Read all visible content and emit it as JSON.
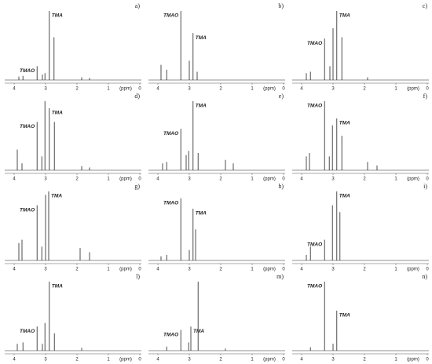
{
  "chart_data": [
    {
      "type": "spectrum",
      "label": "a)",
      "x_label": "(ppm)",
      "xlim": [
        4.2,
        0
      ],
      "ylim": [
        0,
        100
      ],
      "xticks": [
        4,
        3,
        2,
        1,
        0
      ],
      "color": "#222222",
      "series": [
        {
          "name": "TMAO",
          "x": [
            3.27
          ],
          "values": [
            20
          ]
        },
        {
          "name": "TMA",
          "x": [
            2.88
          ],
          "values": [
            100
          ]
        },
        {
          "x": [
            2.73,
            3.02,
            3.1,
            3.72,
            3.85,
            1.85,
            1.6
          ],
          "values": [
            62,
            10,
            8,
            6,
            5,
            4,
            3
          ]
        }
      ]
    },
    {
      "type": "spectrum",
      "label": "b)",
      "x_label": "(ppm)",
      "xlim": [
        4.2,
        0
      ],
      "ylim": [
        0,
        100
      ],
      "xticks": [
        4,
        3,
        2,
        1,
        0
      ],
      "color": "#222222",
      "series": [
        {
          "name": "TMAO",
          "x": [
            3.27
          ],
          "values": [
            100
          ]
        },
        {
          "name": "TMA",
          "x": [
            2.88
          ],
          "values": [
            68
          ]
        },
        {
          "x": [
            3.0,
            3.72,
            3.9,
            2.75
          ],
          "values": [
            28,
            15,
            22,
            12
          ]
        }
      ]
    },
    {
      "type": "spectrum",
      "label": "c)",
      "x_label": "(ppm)",
      "xlim": [
        4.2,
        0
      ],
      "ylim": [
        0,
        100
      ],
      "xticks": [
        4,
        3,
        2,
        1,
        0
      ],
      "color": "#222222",
      "series": [
        {
          "name": "TMAO",
          "x": [
            3.27
          ],
          "values": [
            60
          ]
        },
        {
          "name": "TMA",
          "x": [
            2.88
          ],
          "values": [
            100
          ]
        },
        {
          "x": [
            3.0,
            2.72,
            3.1,
            3.72,
            3.85,
            1.9
          ],
          "values": [
            75,
            62,
            20,
            12,
            10,
            4
          ]
        }
      ]
    },
    {
      "type": "spectrum",
      "label": "d)",
      "x_label": "(ppm)",
      "xlim": [
        4.2,
        0
      ],
      "ylim": [
        0,
        100
      ],
      "xticks": [
        4,
        3,
        2,
        1,
        0
      ],
      "color": "#222222",
      "series": [
        {
          "name": "TMAO",
          "x": [
            3.27
          ],
          "values": [
            70
          ]
        },
        {
          "name": "TMA",
          "x": [
            2.88
          ],
          "values": [
            90
          ]
        },
        {
          "x": [
            3.02,
            2.72,
            3.12,
            3.9,
            3.75,
            1.85,
            1.6
          ],
          "values": [
            100,
            70,
            20,
            30,
            10,
            6,
            4
          ]
        }
      ]
    },
    {
      "type": "spectrum",
      "label": "e)",
      "x_label": "(ppm)",
      "xlim": [
        4.2,
        0
      ],
      "ylim": [
        0,
        100
      ],
      "xticks": [
        4,
        3,
        2,
        1,
        0
      ],
      "color": "#222222",
      "series": [
        {
          "name": "TMAO",
          "x": [
            3.27
          ],
          "values": [
            60
          ]
        },
        {
          "name": "TMA",
          "x": [
            2.88
          ],
          "values": [
            100
          ]
        },
        {
          "x": [
            3.02,
            3.1,
            2.72,
            3.72,
            3.85,
            1.85,
            1.6
          ],
          "values": [
            28,
            22,
            25,
            12,
            10,
            15,
            10
          ]
        }
      ]
    },
    {
      "type": "spectrum",
      "label": "f)",
      "x_label": "(ppm)",
      "xlim": [
        4.2,
        0
      ],
      "ylim": [
        0,
        100
      ],
      "xticks": [
        4,
        3,
        2,
        1,
        0
      ],
      "color": "#222222",
      "series": [
        {
          "name": "TMAO",
          "x": [
            3.27
          ],
          "values": [
            100
          ]
        },
        {
          "name": "TMA",
          "x": [
            2.88
          ],
          "values": [
            75
          ]
        },
        {
          "x": [
            3.02,
            2.72,
            3.12,
            3.75,
            3.85,
            1.9,
            1.6
          ],
          "values": [
            65,
            50,
            20,
            25,
            20,
            12,
            7
          ]
        }
      ]
    },
    {
      "type": "spectrum",
      "label": "g)",
      "x_label": "(ppm)",
      "xlim": [
        4.2,
        0
      ],
      "ylim": [
        0,
        100
      ],
      "xticks": [
        4,
        3,
        2,
        1,
        0
      ],
      "color": "#222222",
      "series": [
        {
          "name": "TMAO",
          "x": [
            3.27
          ],
          "values": [
            80
          ]
        },
        {
          "name": "TMA",
          "x": [
            2.9
          ],
          "values": [
            100
          ]
        },
        {
          "x": [
            3.0,
            3.12,
            3.75,
            3.85,
            1.9,
            1.6
          ],
          "values": [
            95,
            20,
            30,
            25,
            18,
            12
          ]
        }
      ]
    },
    {
      "type": "spectrum",
      "label": "h)",
      "x_label": "(ppm)",
      "xlim": [
        4.2,
        0
      ],
      "ylim": [
        0,
        100
      ],
      "xticks": [
        4,
        3,
        2,
        1,
        0
      ],
      "color": "#222222",
      "series": [
        {
          "name": "TMAO",
          "x": [
            3.27
          ],
          "values": [
            90
          ]
        },
        {
          "name": "TMA",
          "x": [
            2.88
          ],
          "values": [
            75
          ]
        },
        {
          "x": [
            2.8,
            3.0,
            3.72,
            3.9
          ],
          "values": [
            45,
            15,
            8,
            6
          ]
        }
      ]
    },
    {
      "type": "spectrum",
      "label": "i)",
      "x_label": "(ppm)",
      "xlim": [
        4.2,
        0
      ],
      "ylim": [
        0,
        100
      ],
      "xticks": [
        4,
        3,
        2,
        1,
        0
      ],
      "color": "#222222",
      "series": [
        {
          "name": "TMAO",
          "x": [
            3.27
          ],
          "values": [
            30
          ]
        },
        {
          "name": "TMA",
          "x": [
            2.88
          ],
          "values": [
            100
          ]
        },
        {
          "x": [
            3.02,
            2.78,
            3.72,
            3.85
          ],
          "values": [
            80,
            70,
            20,
            8
          ]
        }
      ]
    },
    {
      "type": "spectrum",
      "label": "l)",
      "x_label": "(ppm)",
      "xlim": [
        4.2,
        0
      ],
      "ylim": [
        0,
        100
      ],
      "xticks": [
        4,
        3,
        2,
        1,
        0
      ],
      "color": "#222222",
      "series": [
        {
          "name": "TMAO",
          "x": [
            3.27
          ],
          "values": [
            35
          ]
        },
        {
          "name": "TMA",
          "x": [
            2.88
          ],
          "values": [
            100
          ]
        },
        {
          "x": [
            3.02,
            3.1,
            2.72,
            3.72,
            3.9,
            1.85
          ],
          "values": [
            40,
            10,
            25,
            12,
            10,
            4
          ]
        }
      ]
    },
    {
      "type": "spectrum",
      "label": "m)",
      "x_label": "(ppm)",
      "xlim": [
        4.2,
        0
      ],
      "ylim": [
        0,
        100
      ],
      "xticks": [
        4,
        3,
        2,
        1,
        0
      ],
      "color": "#222222",
      "series": [
        {
          "name": "TMAO",
          "x": [
            3.27
          ],
          "values": [
            30
          ]
        },
        {
          "name": "TMA",
          "x": [
            2.95
          ],
          "values": [
            35
          ]
        },
        {
          "x": [
            2.72,
            3.02,
            3.72,
            1.85
          ],
          "values": [
            100,
            12,
            6,
            3
          ]
        }
      ]
    },
    {
      "type": "spectrum",
      "label": "n)",
      "x_label": "(ppm)",
      "xlim": [
        4.2,
        0
      ],
      "ylim": [
        0,
        100
      ],
      "xticks": [
        4,
        3,
        2,
        1,
        0
      ],
      "color": "#222222",
      "series": [
        {
          "name": "TMAO",
          "x": [
            3.27
          ],
          "values": [
            100
          ]
        },
        {
          "name": "TMA",
          "x": [
            2.88
          ],
          "values": [
            58
          ]
        },
        {
          "x": [
            3.0,
            3.72
          ],
          "values": [
            10,
            5
          ]
        }
      ]
    }
  ]
}
